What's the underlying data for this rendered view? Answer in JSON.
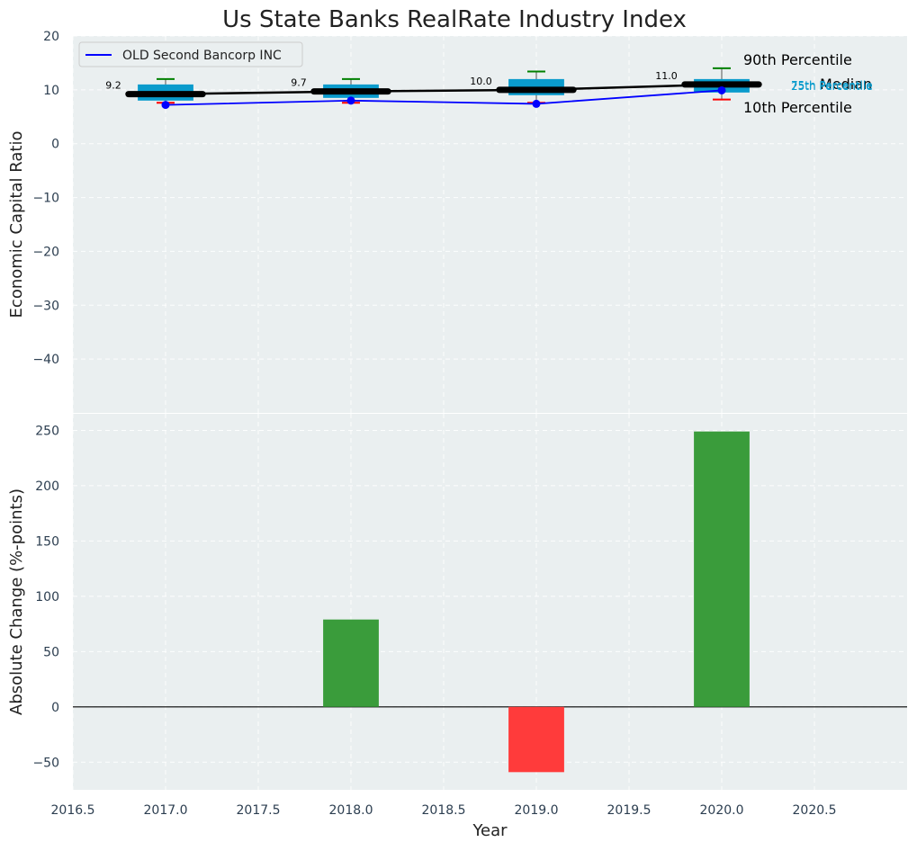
{
  "chart_data": [
    {
      "type": "box+line",
      "title": "Us State Banks RealRate Industry Index",
      "xlabel": "",
      "ylabel": "Economic Capital Ratio",
      "xlim": [
        2016.5,
        2021.0
      ],
      "ylim": [
        -50,
        20
      ],
      "yticks": [
        20,
        10,
        0,
        -10,
        -20,
        -30,
        -40
      ],
      "ytick_labels": [
        "20",
        "10",
        "0",
        "−10",
        "−20",
        "−30",
        "−40"
      ],
      "grid": true,
      "legend": {
        "position": "top-left",
        "entries": [
          "OLD Second Bancorp INC"
        ]
      },
      "years": [
        2017,
        2018,
        2019,
        2020
      ],
      "boxes": [
        {
          "year": 2017,
          "p10": 7.6,
          "p25": 8.0,
          "median": 9.2,
          "p75": 11.0,
          "p90": 12.0
        },
        {
          "year": 2018,
          "p10": 7.6,
          "p25": 8.5,
          "median": 9.7,
          "p75": 11.0,
          "p90": 12.0
        },
        {
          "year": 2019,
          "p10": 7.6,
          "p25": 9.0,
          "median": 10.0,
          "p75": 12.0,
          "p90": 13.4
        },
        {
          "year": 2020,
          "p10": 8.2,
          "p25": 9.5,
          "median": 11.0,
          "p75": 12.0,
          "p90": 14.0
        }
      ],
      "median_labels": [
        "9.2",
        "9.7",
        "10.0",
        "11.0"
      ],
      "series": [
        {
          "name": "OLD Second Bancorp INC",
          "color": "#0000ff",
          "values": [
            7.2,
            8.0,
            7.4,
            9.9
          ]
        }
      ],
      "percentile_labels": {
        "p90": "90th Percentile",
        "median": "Median",
        "p10": "10th Percentile",
        "p75": "75th Percentile",
        "p25": "25th Percentile"
      },
      "colors": {
        "box": "#0a9bcc",
        "median": "#000000",
        "p90_whisker": "#008000",
        "p10_whisker": "#ff0000",
        "panel_bg": "#eaeff0",
        "grid": "#ffffff"
      }
    },
    {
      "type": "bar",
      "xlabel": "Year",
      "ylabel": "Absolute Change (%-points)",
      "xlim": [
        2016.5,
        2021.0
      ],
      "ylim": [
        -75,
        265
      ],
      "xticks": [
        2016.5,
        2017.0,
        2017.5,
        2018.0,
        2018.5,
        2019.0,
        2019.5,
        2020.0,
        2020.5
      ],
      "xtick_labels": [
        "2016.5",
        "2017.0",
        "2017.5",
        "2018.0",
        "2018.5",
        "2019.0",
        "2019.5",
        "2020.0",
        "2020.5"
      ],
      "yticks": [
        250,
        200,
        150,
        100,
        50,
        0,
        -50
      ],
      "ytick_labels": [
        "250",
        "200",
        "150",
        "100",
        "50",
        "0",
        "−50"
      ],
      "categories": [
        2018,
        2019,
        2020
      ],
      "values": [
        79,
        -59,
        249
      ],
      "colors": {
        "positive": "#3a9c3b",
        "negative": "#ff3b3b"
      }
    }
  ]
}
